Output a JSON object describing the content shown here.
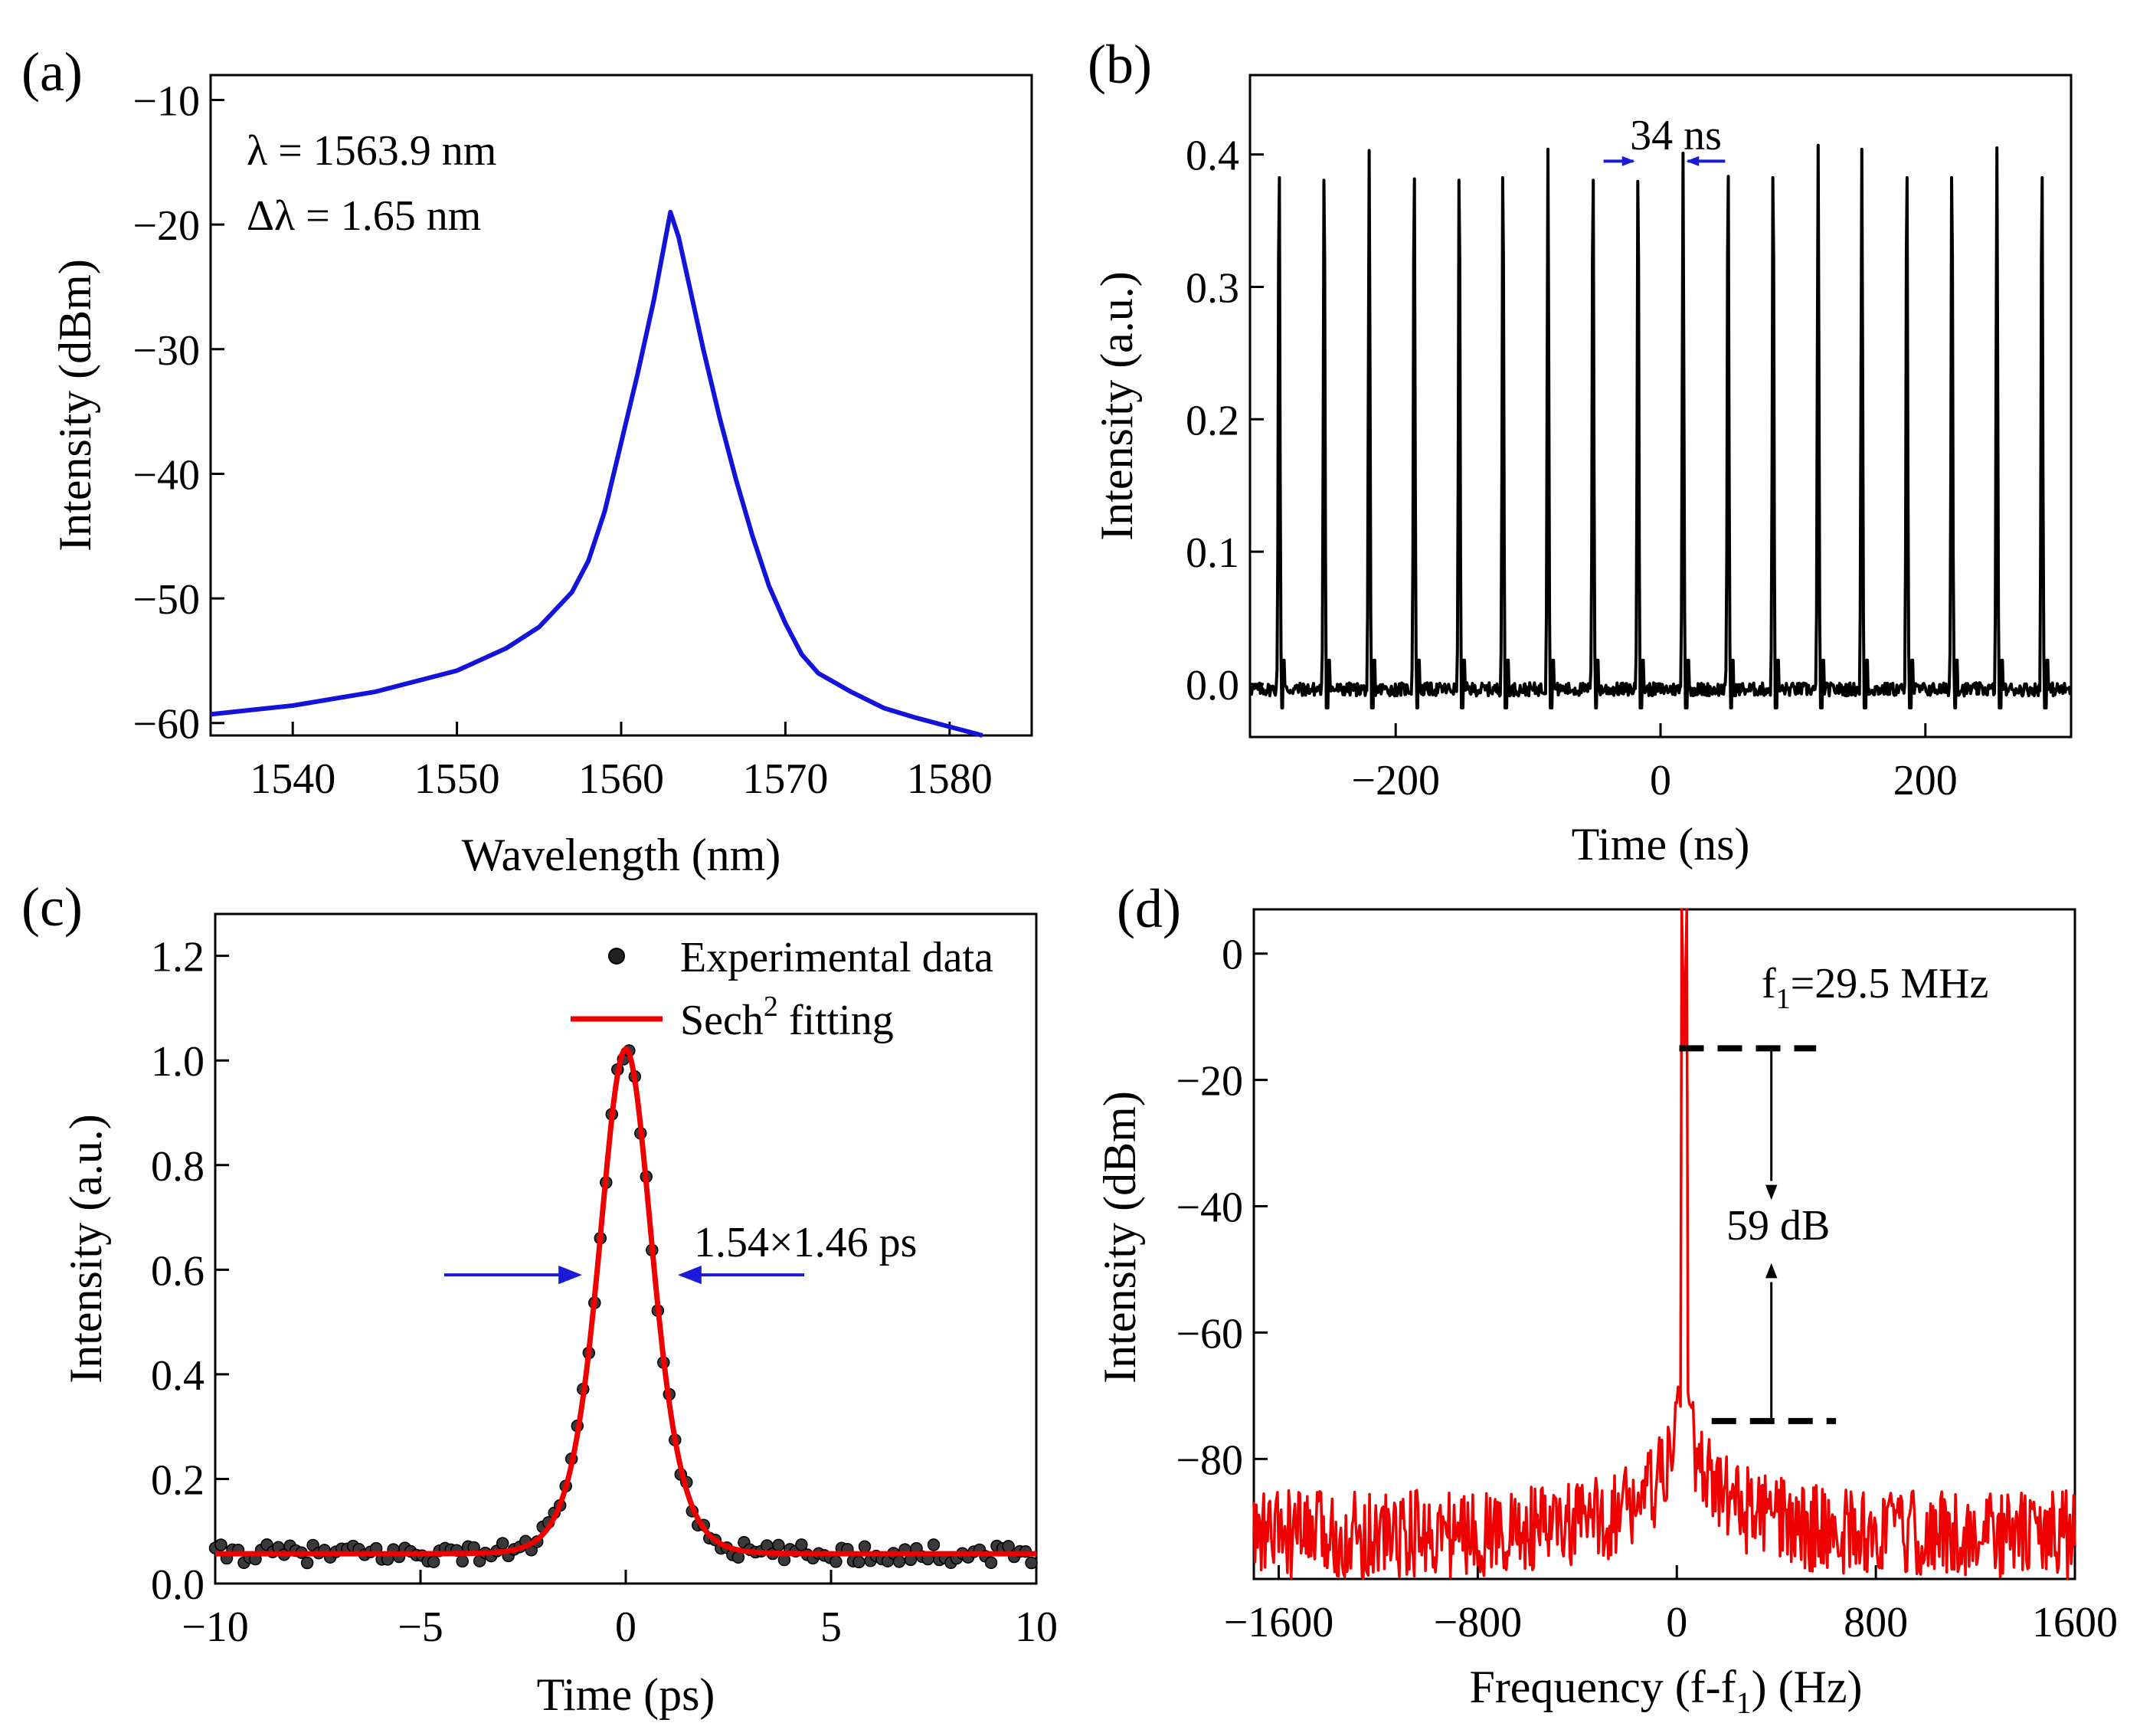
{
  "chart_data": [
    {
      "panel": "(a)",
      "type": "line",
      "xlabel": "Wavelength (nm)",
      "ylabel": "Intensity (dBm)",
      "xlim": [
        1535,
        1585
      ],
      "ylim": [
        -61,
        -8
      ],
      "xticks": [
        1540,
        1550,
        1560,
        1570,
        1580
      ],
      "yticks": [
        -60,
        -50,
        -40,
        -30,
        -20,
        -10
      ],
      "xtick_labels": [
        "1540",
        "1550",
        "1560",
        "1570",
        "1580"
      ],
      "ytick_labels": [
        "−60",
        "−50",
        "−40",
        "−30",
        "−20",
        "−10"
      ],
      "series": [
        {
          "name": "spectrum",
          "color": "#1414d8",
          "x": [
            1535,
            1540,
            1545,
            1550,
            1553,
            1555,
            1557,
            1558,
            1559,
            1560,
            1561,
            1562,
            1562.5,
            1563,
            1563.5,
            1564,
            1565,
            1566,
            1567,
            1568,
            1569,
            1570,
            1571,
            1572,
            1574,
            1576,
            1578,
            1580,
            1582
          ],
          "y": [
            -59.3,
            -58.6,
            -57.5,
            -55.8,
            -54.0,
            -52.3,
            -49.5,
            -47.0,
            -43.0,
            -37.5,
            -32.0,
            -26.0,
            -22.5,
            -19.0,
            -21.0,
            -24.0,
            -30.0,
            -35.5,
            -40.5,
            -45.0,
            -49.0,
            -52.0,
            -54.5,
            -56.0,
            -57.5,
            -58.8,
            -59.6,
            -60.3,
            -61.0
          ]
        }
      ],
      "annotations": [
        "λ = 1563.9 nm",
        "Δλ = 1.65 nm"
      ]
    },
    {
      "panel": "(b)",
      "type": "line",
      "xlabel": "Time (ns)",
      "ylabel": "Intensity (a.u.)",
      "xlim": [
        -310,
        310
      ],
      "ylim": [
        -0.04,
        0.46
      ],
      "xticks": [
        -200,
        0,
        200
      ],
      "yticks": [
        0.0,
        0.1,
        0.2,
        0.3,
        0.4
      ],
      "xtick_labels": [
        "−200",
        "0",
        "200"
      ],
      "ytick_labels": [
        "0.0",
        "0.1",
        "0.2",
        "0.3",
        "0.4"
      ],
      "pulse_period_ns": 33.9,
      "pulse_times_ns": [
        -288,
        -254,
        -220,
        -186,
        -152,
        -119,
        -85,
        -51,
        -17,
        17,
        51,
        85,
        119,
        152,
        186,
        220,
        254,
        288
      ],
      "pulse_peaks": [
        0.405,
        0.403,
        0.403,
        0.404,
        0.403,
        0.405,
        0.404,
        0.403,
        0.402,
        0.401,
        0.406,
        0.405,
        0.407,
        0.404,
        0.405,
        0.405,
        0.405,
        0.405
      ],
      "baseline": 0.0,
      "series": [
        {
          "name": "pulse train",
          "color": "#000000"
        }
      ],
      "annotations": [
        "34 ns"
      ]
    },
    {
      "panel": "(c)",
      "type": "scatter",
      "xlabel": "Time (ps)",
      "ylabel": "Intensity (a.u.)",
      "xlim": [
        -10,
        10
      ],
      "ylim": [
        0.0,
        1.28
      ],
      "xticks": [
        -10,
        -5,
        0,
        5,
        10
      ],
      "yticks": [
        0.0,
        0.2,
        0.4,
        0.6,
        0.8,
        1.0,
        1.2
      ],
      "xtick_labels": [
        "−10",
        "−5",
        "0",
        "5",
        "10"
      ],
      "ytick_labels": [
        "0.0",
        "0.2",
        "0.4",
        "0.6",
        "0.8",
        "1.0",
        "1.2"
      ],
      "fit": {
        "type": "sech2",
        "amplitude": 0.965,
        "offset": 0.057,
        "center": 0.0,
        "fwhm_ps": 1.54
      },
      "series": [
        {
          "name": "Experimental data",
          "kind": "scatter",
          "color": "#000000"
        },
        {
          "name": "Sech² fitting",
          "kind": "line",
          "color": "#ee0000"
        }
      ],
      "legend": {
        "position": "top-right",
        "entries": [
          "Experimental data",
          "Sech",
          "2",
          " fitting"
        ]
      },
      "annotations": [
        "1.54×1.46 ps"
      ]
    },
    {
      "panel": "(d)",
      "type": "line",
      "xlabel_parts": [
        "Frequency (f-f",
        "1",
        ") (Hz)"
      ],
      "ylabel": "Intensity (dBm)",
      "xlim": [
        -1700,
        1600
      ],
      "ylim": [
        -99,
        7
      ],
      "xticks": [
        -1600,
        -800,
        0,
        800,
        1600
      ],
      "yticks": [
        -80,
        -60,
        -40,
        -20,
        0
      ],
      "xtick_labels": [
        "−1600",
        "−800",
        "0",
        "800",
        "1600"
      ],
      "ytick_labels": [
        "−80",
        "−60",
        "−40",
        "−20",
        "0"
      ],
      "peak": {
        "frequency_hz": 30,
        "level_dbm": -15
      },
      "noise_floor_dbm": -74,
      "snr_db": 59,
      "series": [
        {
          "name": "RF spectrum",
          "color": "#ee0000"
        }
      ],
      "annotations": {
        "f1_parts": [
          "f",
          "1",
          "=29.5 MHz"
        ],
        "snr": "59 dB"
      }
    }
  ]
}
